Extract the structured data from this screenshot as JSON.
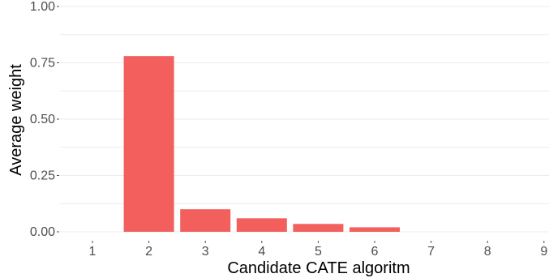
{
  "chart_data": {
    "type": "bar",
    "xlabel": "Candidate CATE algoritm",
    "ylabel": "Average weight",
    "categories": [
      "1",
      "2",
      "3",
      "4",
      "5",
      "6",
      "7",
      "8",
      "9"
    ],
    "values": [
      0,
      0.78,
      0.1,
      0.06,
      0.035,
      0.02,
      0,
      0,
      0
    ],
    "ylim": [
      0,
      1
    ],
    "yticks": [
      {
        "value": 0,
        "label": "0.00"
      },
      {
        "value": 0.25,
        "label": "0.25"
      },
      {
        "value": 0.5,
        "label": "0.50"
      },
      {
        "value": 0.75,
        "label": "0.75"
      },
      {
        "value": 1,
        "label": "1.00"
      }
    ],
    "grid": true,
    "bar_color": "#F25F5C",
    "grid_color": "#EBEBEB"
  }
}
